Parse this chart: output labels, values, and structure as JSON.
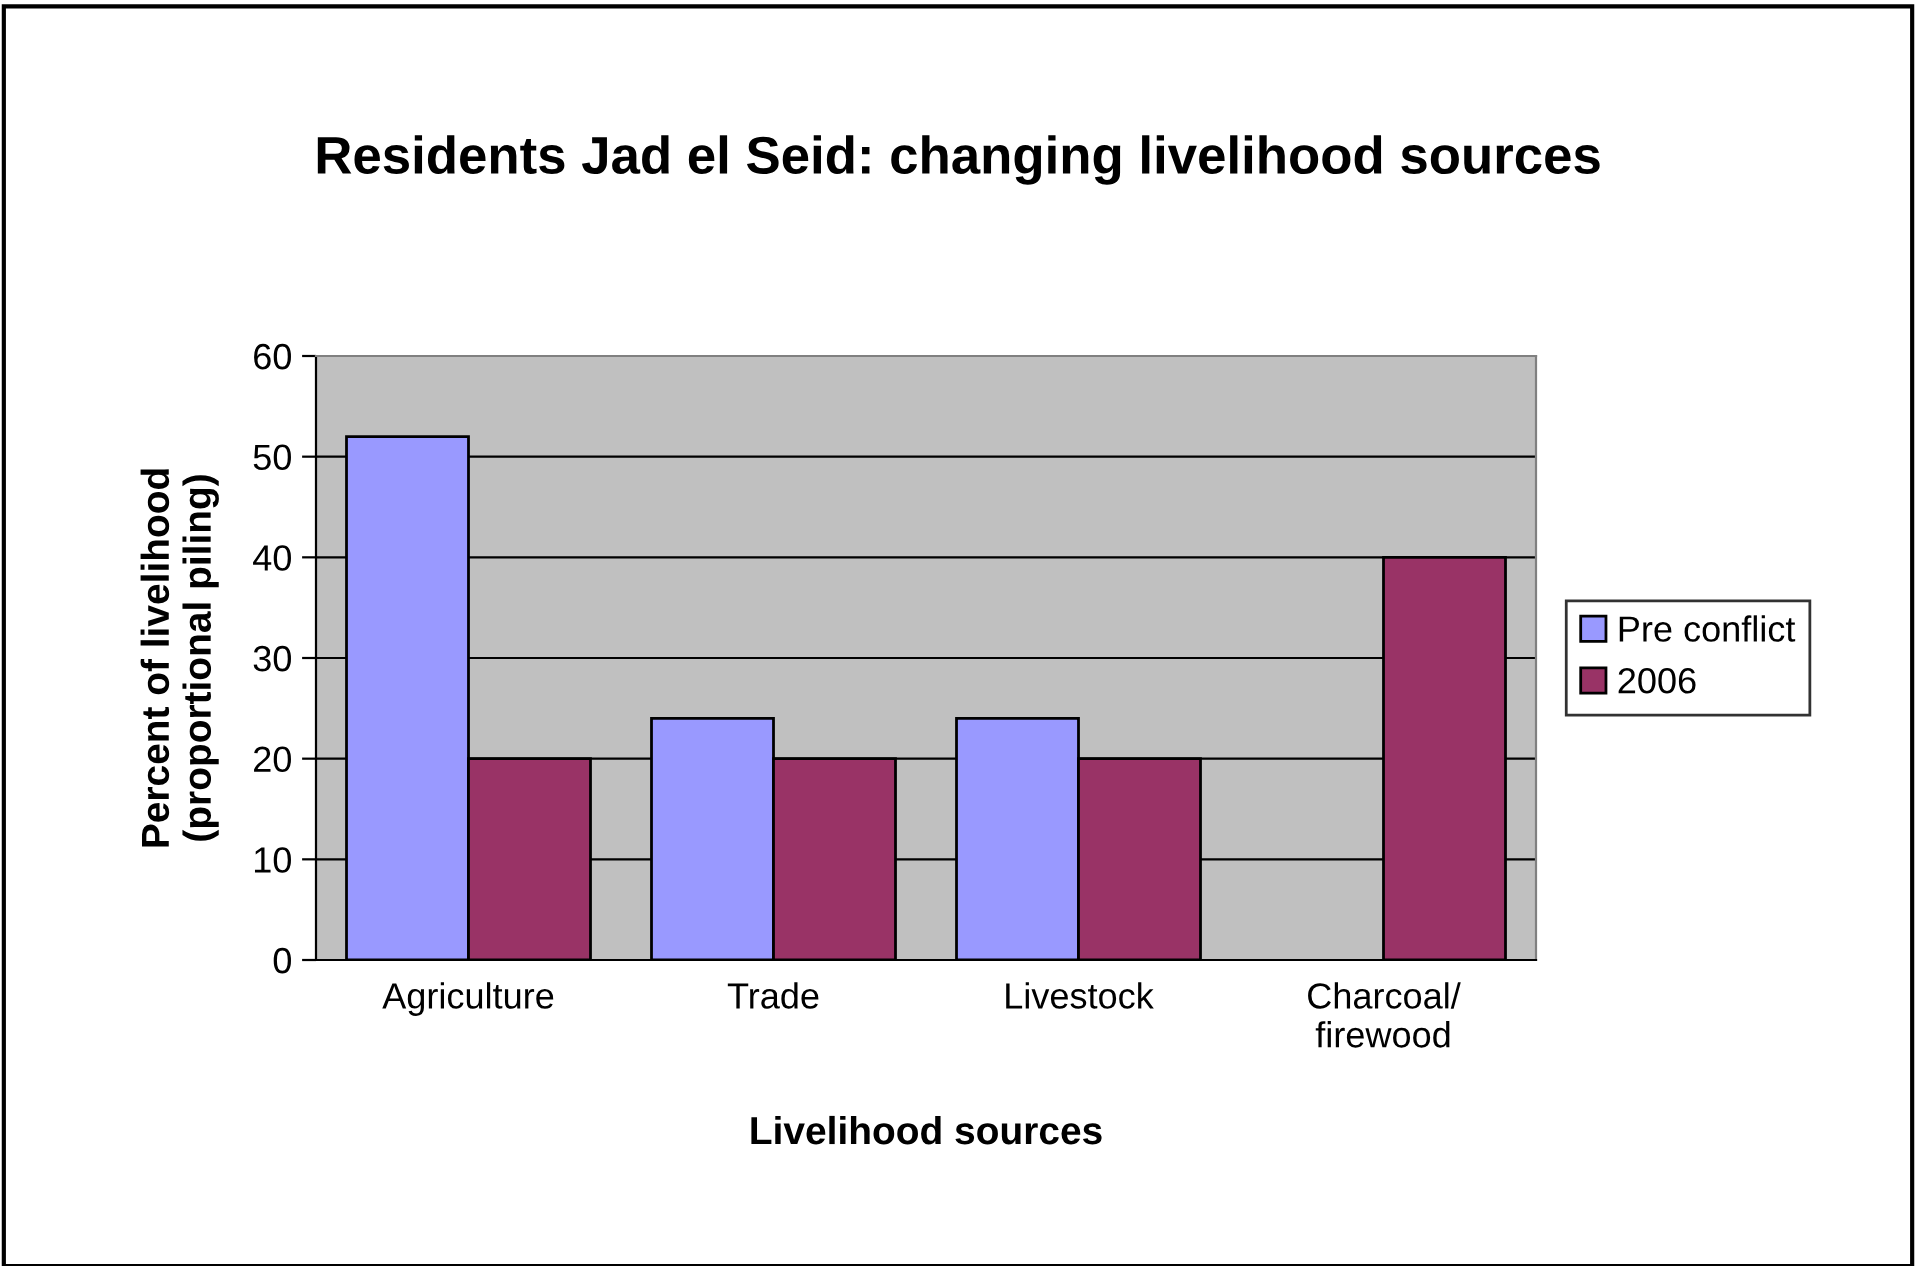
{
  "chart_data": {
    "type": "bar",
    "title": "Residents Jad el Seid: changing livelihood sources",
    "xlabel": "Livelihood sources",
    "ylabel": "Percent of livelihood\n(proportional piling)",
    "categories": [
      "Agriculture",
      "Trade",
      "Livestock",
      "Charcoal/\nfirewood"
    ],
    "series": [
      {
        "name": "Pre conflict",
        "color": "#9999ff",
        "values": [
          52,
          24,
          24,
          null
        ]
      },
      {
        "name": "2006",
        "color": "#993366",
        "values": [
          20,
          20,
          20,
          40
        ]
      }
    ],
    "ylim": [
      0,
      60
    ],
    "yticks": [
      0,
      10,
      20,
      30,
      40,
      50,
      60
    ],
    "grid": "y",
    "legend": "right"
  }
}
